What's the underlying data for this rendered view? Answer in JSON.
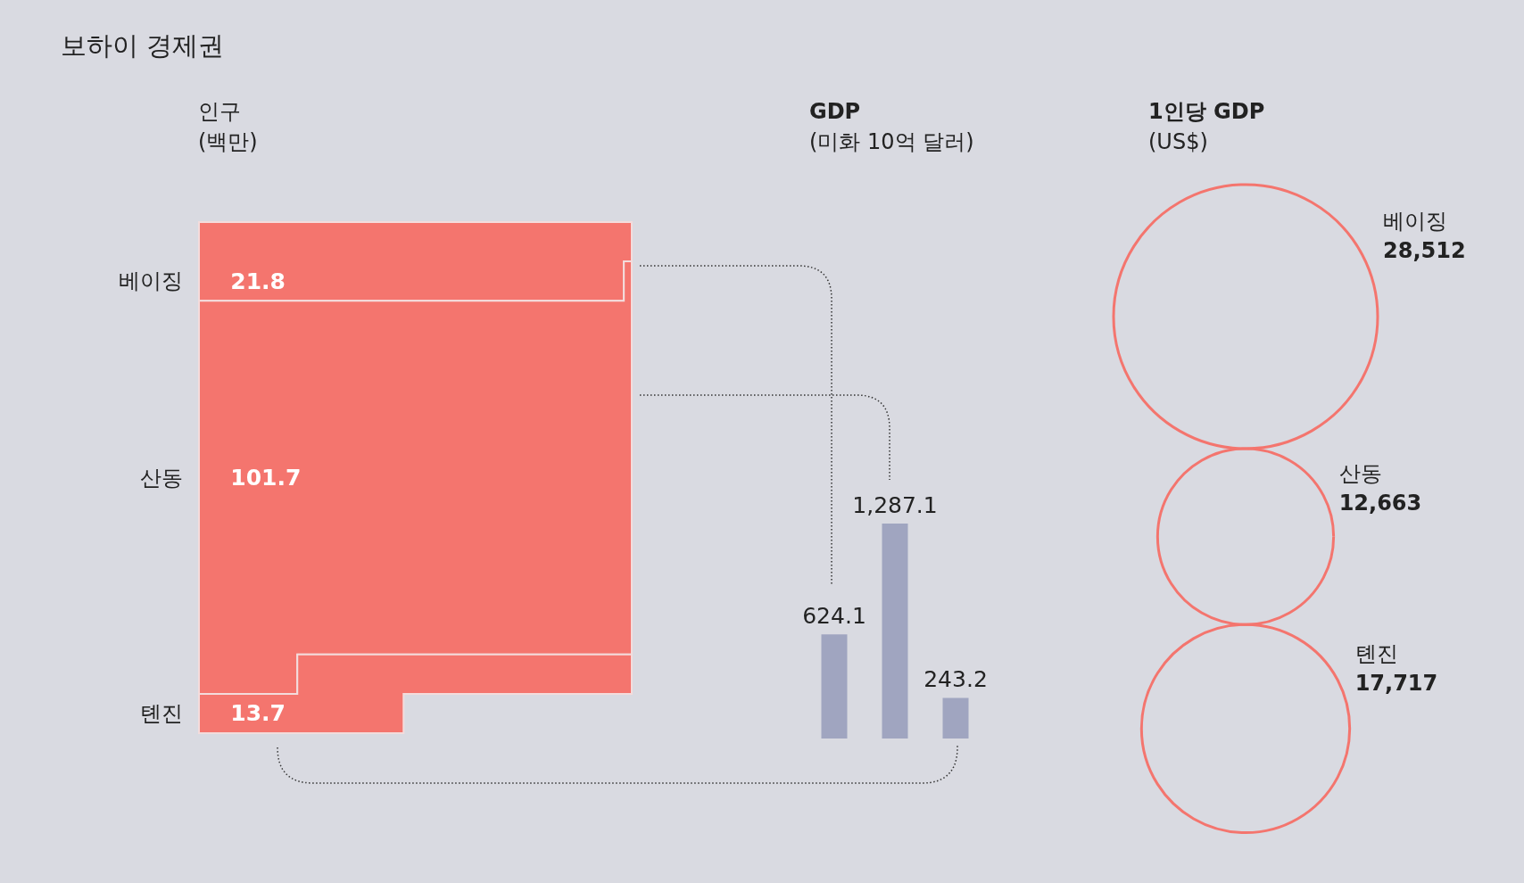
{
  "chart_data": [
    {
      "type": "other",
      "title": "보하이 경제권",
      "subtitle": "인구\n(백만)",
      "categories": [
        "베이징",
        "산동",
        "톈진"
      ],
      "values": [
        21.8,
        101.7,
        13.7
      ],
      "color": "#f4756e",
      "data_labels": true
    },
    {
      "type": "bar",
      "title": "GDP",
      "subtitle": "(미화 10억 달러)",
      "categories": [
        null,
        null,
        null
      ],
      "values": [
        624.1,
        1287.1,
        243.2
      ],
      "color": "#a0a5c0",
      "value_labels": [
        "624.1",
        "1,287.1",
        "243.2"
      ]
    },
    {
      "type": "other",
      "title": "1인당 GDP",
      "subtitle": "(US$)",
      "categories": [
        "베이징",
        "산동",
        "톈진"
      ],
      "values": [
        28512,
        12663,
        17717
      ],
      "color": "#f4756e",
      "value_labels": [
        "28,512",
        "12,663",
        "17,717"
      ]
    }
  ]
}
